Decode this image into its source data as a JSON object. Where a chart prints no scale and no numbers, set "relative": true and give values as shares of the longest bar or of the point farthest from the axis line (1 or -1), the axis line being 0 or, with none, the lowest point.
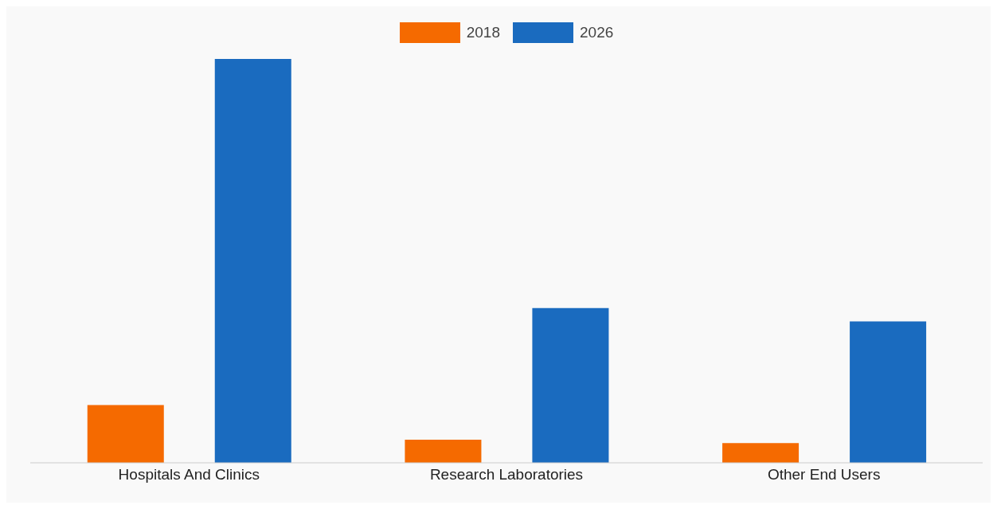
{
  "chart_data": {
    "type": "bar",
    "relative": true,
    "categories": [
      "Hospitals And Clinics",
      "Research Laboratories",
      "Other End Users"
    ],
    "series": [
      {
        "name": "2018",
        "color": "#f56a00",
        "values": [
          0.143,
          0.057,
          0.049
        ]
      },
      {
        "name": "2026",
        "color": "#1a6bbf",
        "values": [
          1,
          0.383,
          0.35
        ]
      }
    ],
    "legend": "top",
    "grid": false
  }
}
